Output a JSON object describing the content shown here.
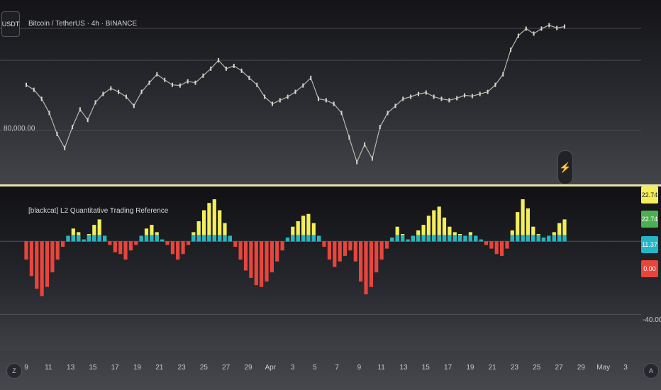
{
  "header": {
    "symbol_badge": "USDT",
    "title": "Bitcoin / TetherUS · 4h · BINANCE"
  },
  "price_axis": {
    "labels": [
      "80,000.00"
    ]
  },
  "indicator": {
    "title": "[blackcat] L2 Quantitative Trading Reference",
    "tags": [
      {
        "text": "22.74",
        "bg": "#f4ee5a",
        "fg": "#222222"
      },
      {
        "text": "22.74",
        "bg": "#4caf50",
        "fg": "#ffffff"
      },
      {
        "text": "11.37",
        "bg": "#26b5c4",
        "fg": "#ffffff"
      },
      {
        "text": "0.00",
        "bg": "#e8453c",
        "fg": "#ffffff"
      }
    ],
    "axis_label": "-40.00"
  },
  "time_axis": {
    "left_button": "Z",
    "right_button": "A",
    "ticks": [
      "9",
      "11",
      "13",
      "15",
      "17",
      "19",
      "21",
      "23",
      "25",
      "27",
      "29",
      "Apr",
      "3",
      "5",
      "7",
      "9",
      "11",
      "13",
      "15",
      "17",
      "19",
      "21",
      "23",
      "25",
      "27",
      "29",
      "May",
      "3"
    ]
  },
  "colors": {
    "positive": "#f4ee5a",
    "signal": "#26b5c4",
    "negative": "#e8453c",
    "candle": "#d6d6c8"
  },
  "chart_data": [
    {
      "type": "line",
      "title": "Bitcoin / TetherUS · 4h · BINANCE",
      "y_ticks": [
        "80,000.00"
      ],
      "series": [
        {
          "values": [
            86500,
            85800,
            84500,
            82500,
            79500,
            77500,
            80500,
            83000,
            81500,
            84000,
            85200,
            86000,
            85500,
            84800,
            83500,
            85500,
            86800,
            88000,
            87200,
            86500,
            86400,
            87000,
            86800,
            87800,
            88800,
            90000,
            88800,
            89200,
            88500,
            87500,
            86500,
            84800,
            83800,
            84300,
            84800,
            85500,
            86400,
            87500,
            84500,
            84300,
            83800,
            82500,
            79000,
            75500,
            78000,
            76000,
            80500,
            82500,
            83500,
            84500,
            84800,
            85200,
            85400,
            84800,
            84500,
            84300,
            84600,
            85000,
            84900,
            85200,
            85500,
            86500,
            88000,
            91500,
            93500,
            94500,
            93800,
            94500,
            95000,
            94600,
            94800
          ]
        }
      ]
    },
    {
      "type": "bar",
      "title": "[blackcat] L2 Quantitative Trading Reference",
      "ylim": [
        -60,
        30
      ],
      "y_ticks": [
        -40.0
      ],
      "series": [
        {
          "name": "",
          "values": [
            -10,
            -19,
            -26,
            -30,
            -25,
            -17,
            -10,
            -3,
            3,
            7,
            5,
            1,
            4,
            9,
            12,
            3,
            -2,
            -6,
            -7,
            -10,
            -5,
            -2,
            3,
            7,
            9,
            5,
            1,
            -2,
            -7,
            -10,
            -7,
            -2,
            5,
            11,
            17,
            21,
            23,
            17,
            10,
            3,
            -3,
            -10,
            -16,
            -20,
            -24,
            -25,
            -22,
            -17,
            -11,
            -5,
            2,
            8,
            11,
            14,
            15,
            10,
            3,
            -3,
            -10,
            -14,
            -11,
            -8,
            -5,
            -11,
            -22,
            -29,
            -25,
            -17,
            -10,
            -4,
            2,
            8,
            4,
            1,
            3,
            6,
            9,
            14,
            17,
            19,
            13,
            8,
            5,
            4,
            3,
            5,
            3,
            1,
            -2,
            -4,
            -7,
            -8,
            -4,
            6,
            16,
            23,
            18,
            8,
            4,
            2,
            3,
            5,
            10,
            12
          ]
        }
      ]
    }
  ]
}
